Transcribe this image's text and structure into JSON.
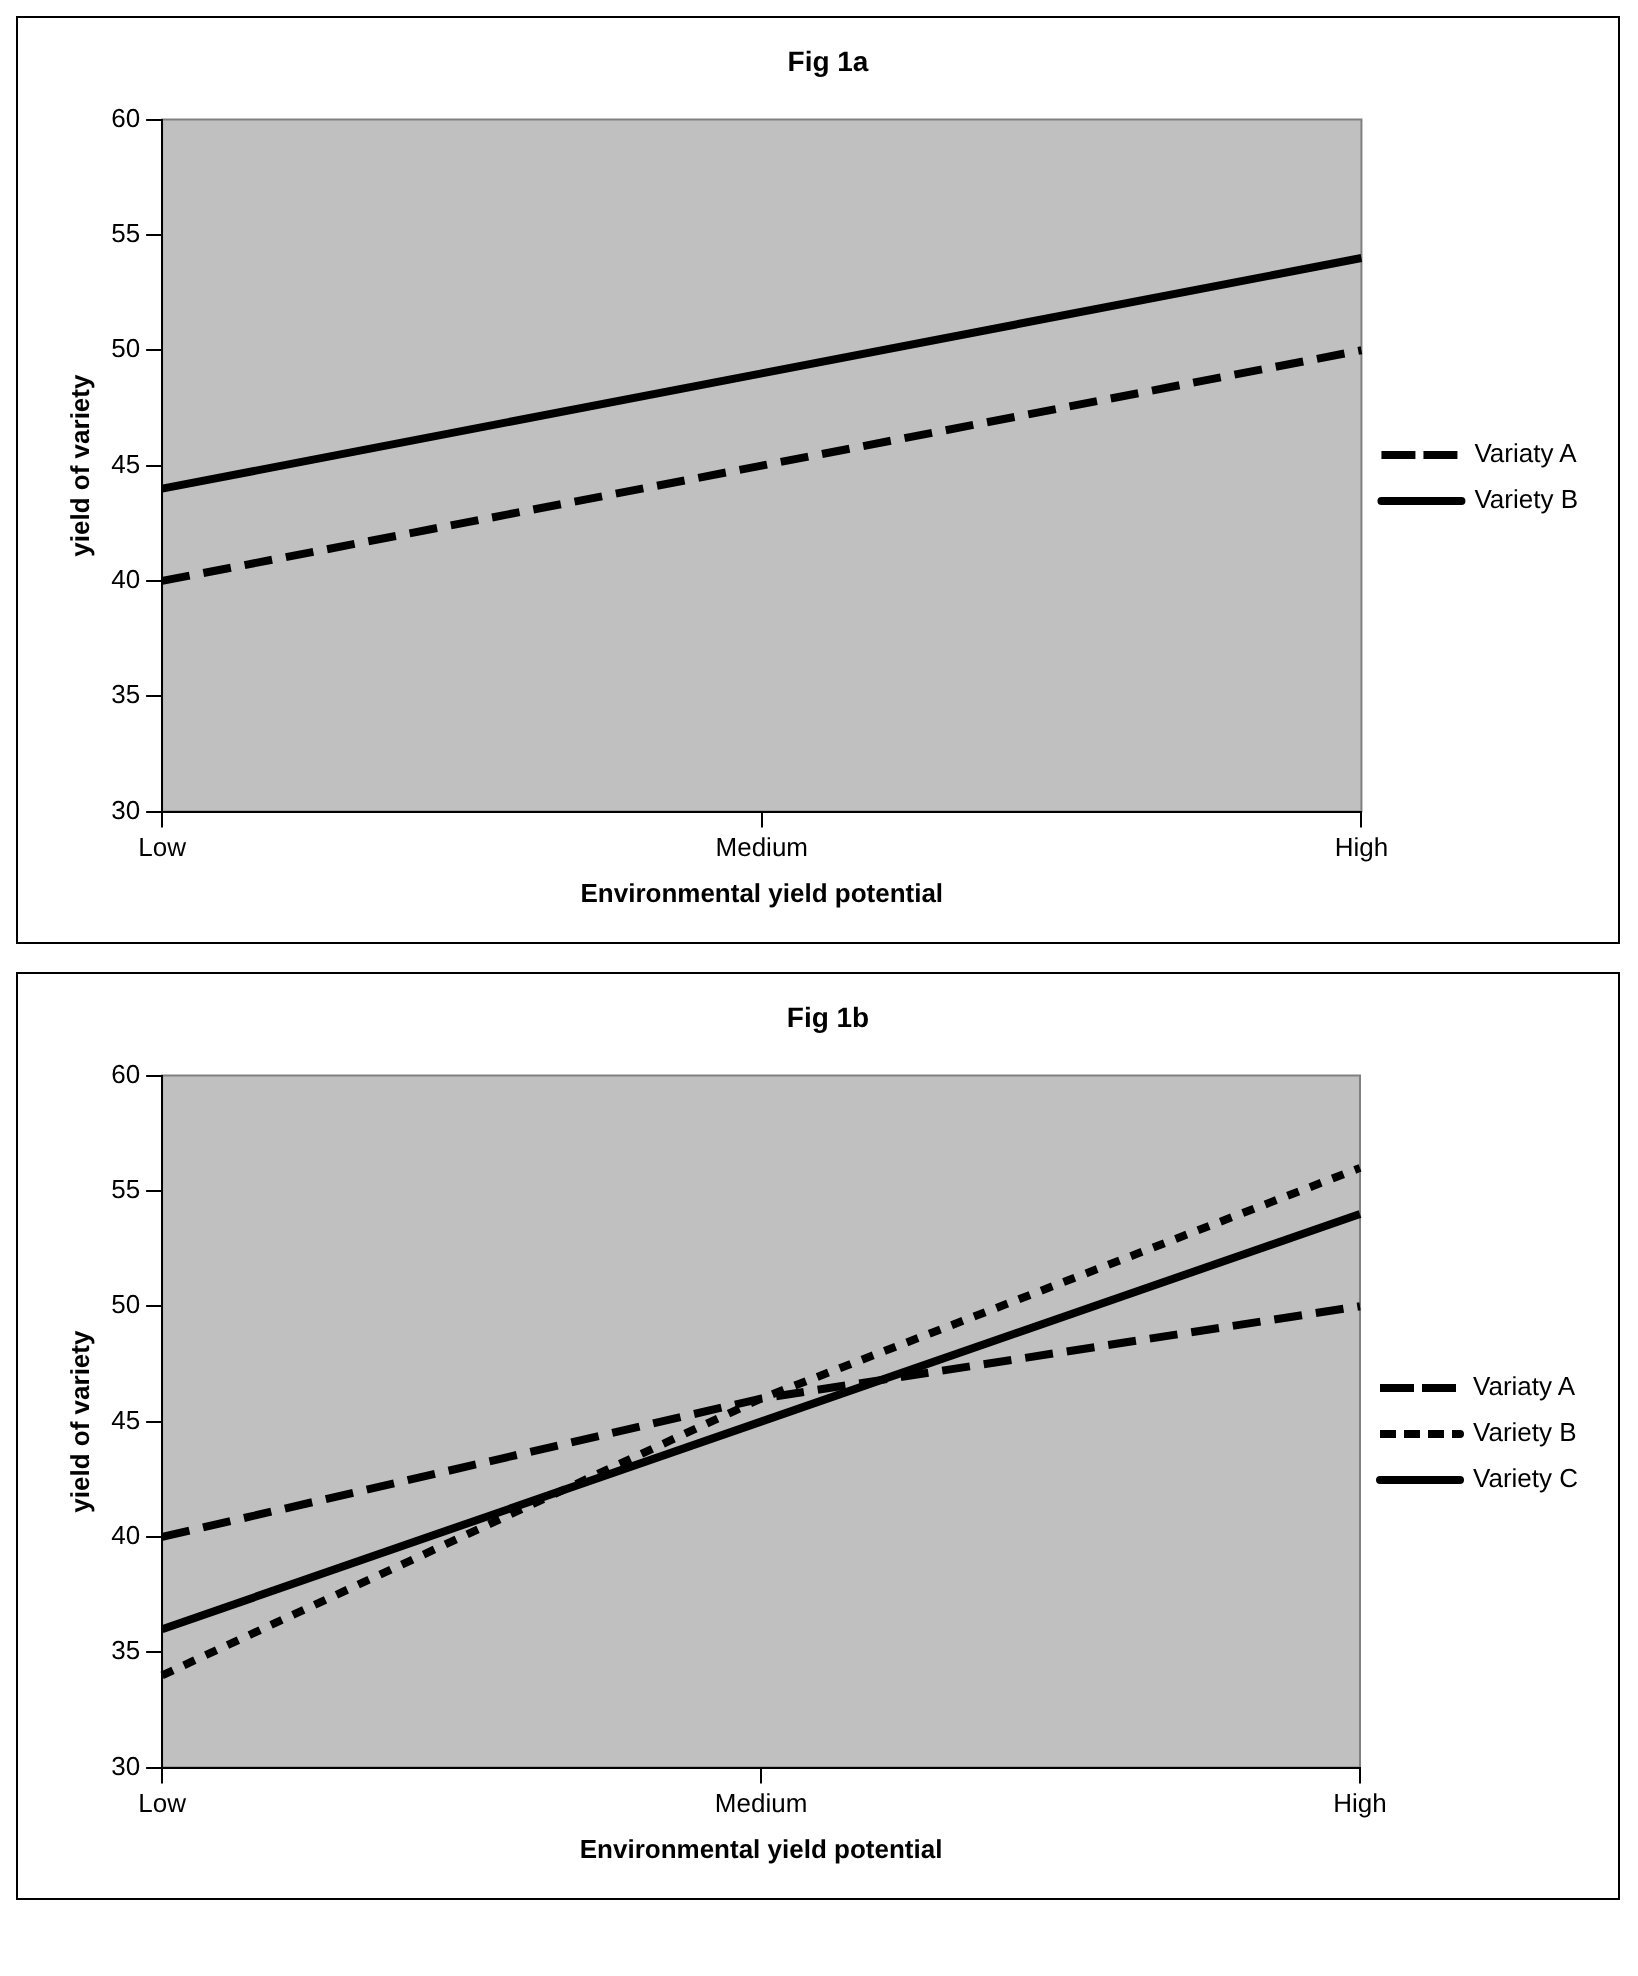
{
  "chart_data": [
    {
      "type": "line",
      "title": "Fig 1a",
      "xlabel": "Environmental yield potential",
      "ylabel": "yield of variety",
      "categories": [
        "Low",
        "Medium",
        "High"
      ],
      "ylim": [
        30,
        60
      ],
      "yticks": [
        30,
        35,
        40,
        45,
        50,
        55,
        60
      ],
      "grid": false,
      "legend": "right",
      "marker": "none",
      "series": [
        {
          "name": "Variaty A",
          "color": "#000000",
          "line_style": "dashed",
          "values": [
            40,
            45,
            50
          ]
        },
        {
          "name": "Variety B",
          "color": "#000000",
          "line_style": "solid",
          "values": [
            44,
            49,
            54
          ]
        }
      ]
    },
    {
      "type": "line",
      "title": "Fig 1b",
      "xlabel": "Environmental yield potential",
      "ylabel": "yield of variety",
      "categories": [
        "Low",
        "Medium",
        "High"
      ],
      "ylim": [
        30,
        60
      ],
      "yticks": [
        30,
        35,
        40,
        45,
        50,
        55,
        60
      ],
      "grid": false,
      "legend": "right",
      "marker": "none",
      "series": [
        {
          "name": "Variaty A",
          "color": "#000000",
          "line_style": "dashed",
          "values": [
            40,
            46,
            50
          ]
        },
        {
          "name": "Variety B",
          "color": "#000000",
          "line_style": "dotted",
          "values": [
            34,
            46,
            56
          ]
        },
        {
          "name": "Variety C",
          "color": "#000000",
          "line_style": "solid",
          "values": [
            36,
            45,
            54
          ]
        }
      ]
    }
  ]
}
